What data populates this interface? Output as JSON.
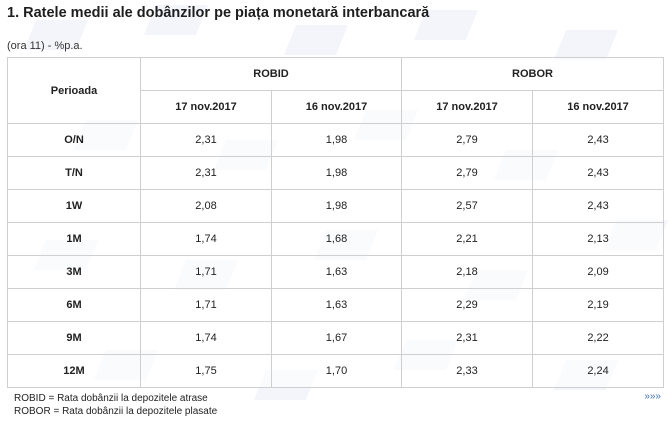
{
  "title": "1. Ratele medii ale dobânzilor pe piața monetară interbancară",
  "unit_note": "(ora 11) - %p.a.",
  "table": {
    "period_header": "Perioada",
    "groups": [
      "ROBID",
      "ROBOR"
    ],
    "dates": [
      "17 nov.2017",
      "16 nov.2017",
      "17 nov.2017",
      "16 nov.2017"
    ],
    "rows": [
      {
        "period": "O/N",
        "values": [
          "2,31",
          "1,98",
          "2,79",
          "2,43"
        ]
      },
      {
        "period": "T/N",
        "values": [
          "2,31",
          "1,98",
          "2,79",
          "2,43"
        ]
      },
      {
        "period": "1W",
        "values": [
          "2,08",
          "1,98",
          "2,57",
          "2,43"
        ]
      },
      {
        "period": "1M",
        "values": [
          "1,74",
          "1,68",
          "2,21",
          "2,13"
        ]
      },
      {
        "period": "3M",
        "values": [
          "1,71",
          "1,63",
          "2,18",
          "2,09"
        ]
      },
      {
        "period": "6M",
        "values": [
          "1,71",
          "1,63",
          "2,29",
          "2,19"
        ]
      },
      {
        "period": "9M",
        "values": [
          "1,74",
          "1,67",
          "2,31",
          "2,22"
        ]
      },
      {
        "period": "12M",
        "values": [
          "1,75",
          "1,70",
          "2,33",
          "2,24"
        ]
      }
    ]
  },
  "footnotes": [
    "ROBID = Rata dobânzii la depozitele atrase",
    "ROBOR = Rata dobânzii la depozitele plasate"
  ],
  "more_link": "»»»"
}
